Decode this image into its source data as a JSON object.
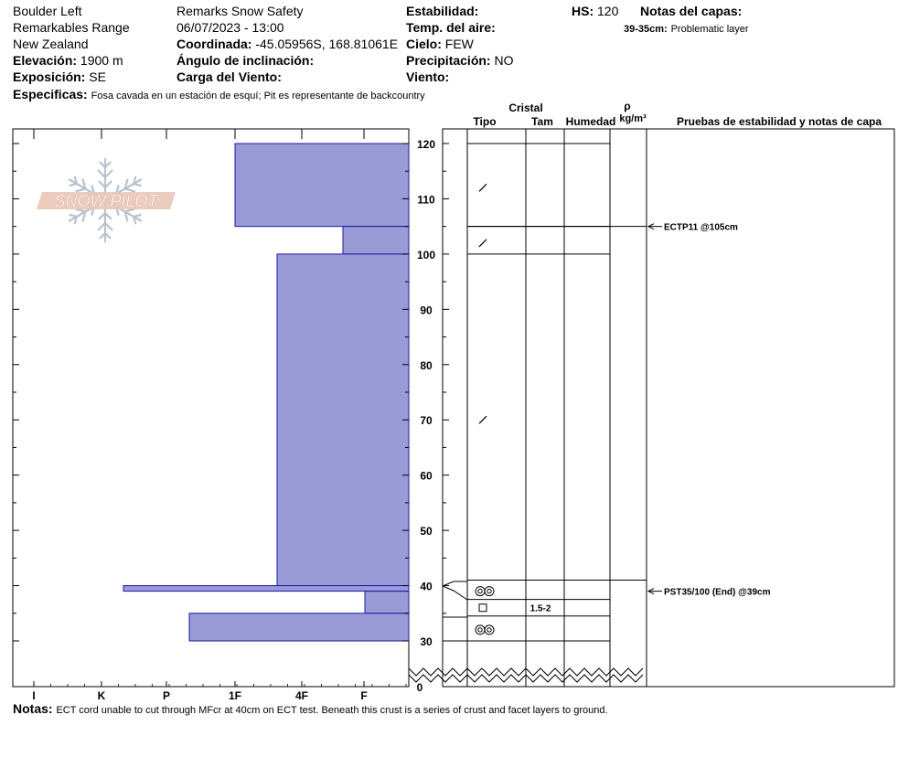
{
  "header": {
    "location": "Boulder Left",
    "range": "Remarkables Range",
    "country": "New Zealand",
    "elevation_label": "Elevación:",
    "elevation_value": "1900 m",
    "aspect_label": "Exposición:",
    "aspect_value": "SE",
    "specifics_label": "Especificas:",
    "specifics_value": "Fosa cavada en un estación de esquí; Pit es representante de backcountry",
    "observer": "Remarks Snow Safety",
    "datetime": "06/07/2023 - 13:00",
    "coord_label": "Coordinada:",
    "coord_value": "-45.05956S, 168.81061E",
    "slope_label": "Ángulo de inclinación:",
    "wind_load_label": "Carga del Viento:",
    "stability_label": "Estabilidad:",
    "air_temp_label": "Temp. del aire:",
    "sky_label": "Cielo:",
    "sky_value": "FEW",
    "precip_label": "Precipitación:",
    "precip_value": "NO",
    "wind_label": "Viento:",
    "hs_label": "HS:",
    "hs_value": "120",
    "layer_notes_title": "Notas del capas:",
    "layer_note_range": "39-35cm:",
    "layer_note_text": "Problematic layer"
  },
  "logo": {
    "text": "SNOW PILOT"
  },
  "columns": {
    "crystal": "Cristal",
    "type": "Tipo",
    "size": "Tam",
    "humidity": "Humedad",
    "rho": "ρ",
    "density_unit": "kg/m³",
    "tests": "Pruebas de estabilidad y notas de capa"
  },
  "notes": {
    "label": "Notas:",
    "text": "ECT cord unable to cut through MFcr at 40cm on ECT test. Beneath this crust is a series of crust and facet layers to ground."
  },
  "chart_data": {
    "type": "bar",
    "hardness_ticks": [
      "I",
      "K",
      "P",
      "1F",
      "4F",
      "F"
    ],
    "depth_ticks": [
      30,
      40,
      50,
      60,
      70,
      80,
      90,
      100,
      110,
      120
    ],
    "depth_zero_label": "0",
    "layers": [
      {
        "top": 120,
        "bottom": 105,
        "hardness": "1F"
      },
      {
        "top": 105,
        "bottom": 100,
        "hardness": "4F+"
      },
      {
        "top": 100,
        "bottom": 40,
        "hardness": "1F-"
      },
      {
        "top": 40,
        "bottom": 39,
        "hardness": "K+"
      },
      {
        "top": 39,
        "bottom": 35,
        "hardness": "F+"
      },
      {
        "top": 35,
        "bottom": 30,
        "hardness": "P-"
      }
    ],
    "layer_boundaries": [
      120,
      105,
      100,
      41,
      37.5,
      34.5,
      30
    ],
    "grain_marks": [
      {
        "depth": 112,
        "symbol": "decomposing"
      },
      {
        "depth": 102,
        "symbol": "decomposing"
      },
      {
        "depth": 70,
        "symbol": "decomposing"
      },
      {
        "depth": 39,
        "symbol": "melt-freeze"
      },
      {
        "depth": 36,
        "symbol": "facet"
      },
      {
        "depth": 32,
        "symbol": "melt-freeze"
      }
    ],
    "grain_size": {
      "depth": 36,
      "label": "1.5-2"
    },
    "tests": [
      {
        "depth": 105,
        "label": "ECTP11 @105cm"
      },
      {
        "depth": 39,
        "label": "PST35/100 (End) @39cm"
      }
    ]
  }
}
